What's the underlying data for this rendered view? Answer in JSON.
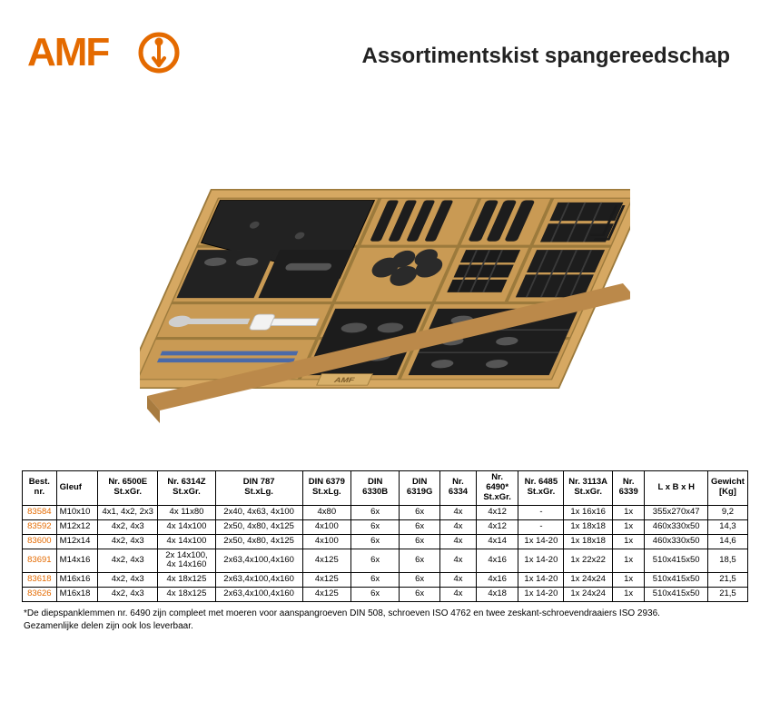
{
  "brand": {
    "name": "AMF",
    "logo_text_color": "#e46a00",
    "logo_circle_stroke": "#e46a00",
    "logo_circle_bg": "#ffffff"
  },
  "title": "Assortimentskist spangereedschap",
  "product_image": {
    "box_wood_outer": "#d6a862",
    "box_wood_inner": "#c99a54",
    "box_wood_highlight": "#e6c084",
    "parts_color": "#222222",
    "parts_shade": "#3a3a3a",
    "tube_color": "#f2f2f2",
    "wrench_color": "#cfcfcf",
    "thread_color": "#2a2a2a",
    "label_bg": "#d8b06a",
    "label_text": "AMF"
  },
  "table": {
    "head_row1": [
      "Best. nr.",
      "Gleuf",
      "Nr. 6500E St.xGr.",
      "Nr. 6314Z St.xGr.",
      "DIN 787 St.xLg.",
      "DIN 6379 St.xLg.",
      "DIN 6330B",
      "DIN 6319G",
      "Nr. 6334",
      "Nr. 6490* St.xGr.",
      "Nr. 6485 St.xGr.",
      "Nr. 3113A St.xGr.",
      "Nr. 6339",
      "L x B x H",
      "Gewicht [Kg]"
    ],
    "rows": [
      {
        "bestnr": "83584",
        "gleuf": "M10x10",
        "c6500": "4x1, 4x2, 2x3",
        "c6314": "4x 11x80",
        "c787": "2x40, 4x63, 4x100",
        "c6379": "4x80",
        "c6330": "6x",
        "c6319": "6x",
        "c6334": "4x",
        "c6490": "4x12",
        "c6485": "-",
        "c3113": "1x 16x16",
        "c6339": "1x",
        "lbh": "355x270x47",
        "kg": "9,2"
      },
      {
        "bestnr": "83592",
        "gleuf": "M12x12",
        "c6500": "4x2, 4x3",
        "c6314": "4x 14x100",
        "c787": "2x50, 4x80, 4x125",
        "c6379": "4x100",
        "c6330": "6x",
        "c6319": "6x",
        "c6334": "4x",
        "c6490": "4x12",
        "c6485": "-",
        "c3113": "1x 18x18",
        "c6339": "1x",
        "lbh": "460x330x50",
        "kg": "14,3"
      },
      {
        "bestnr": "83600",
        "gleuf": "M12x14",
        "c6500": "4x2, 4x3",
        "c6314": "4x 14x100",
        "c787": "2x50, 4x80, 4x125",
        "c6379": "4x100",
        "c6330": "6x",
        "c6319": "6x",
        "c6334": "4x",
        "c6490": "4x14",
        "c6485": "1x 14-20",
        "c3113": "1x 18x18",
        "c6339": "1x",
        "lbh": "460x330x50",
        "kg": "14,6"
      },
      {
        "bestnr": "83691",
        "gleuf": "M14x16",
        "c6500": "4x2, 4x3",
        "c6314": "2x 14x100, 4x 14x160",
        "c787": "2x63,4x100,4x160",
        "c6379": "4x125",
        "c6330": "6x",
        "c6319": "6x",
        "c6334": "4x",
        "c6490": "4x16",
        "c6485": "1x 14-20",
        "c3113": "1x 22x22",
        "c6339": "1x",
        "lbh": "510x415x50",
        "kg": "18,5"
      },
      {
        "bestnr": "83618",
        "gleuf": "M16x16",
        "c6500": "4x2, 4x3",
        "c6314": "4x 18x125",
        "c787": "2x63,4x100,4x160",
        "c6379": "4x125",
        "c6330": "6x",
        "c6319": "6x",
        "c6334": "4x",
        "c6490": "4x16",
        "c6485": "1x 14-20",
        "c3113": "1x 24x24",
        "c6339": "1x",
        "lbh": "510x415x50",
        "kg": "21,5"
      },
      {
        "bestnr": "83626",
        "gleuf": "M16x18",
        "c6500": "4x2, 4x3",
        "c6314": "4x 18x125",
        "c787": "2x63,4x100,4x160",
        "c6379": "4x125",
        "c6330": "6x",
        "c6319": "6x",
        "c6334": "4x",
        "c6490": "4x18",
        "c6485": "1x 14-20",
        "c3113": "1x 24x24",
        "c6339": "1x",
        "lbh": "510x415x50",
        "kg": "21,5"
      }
    ],
    "col_widths_pct": [
      4.8,
      5.8,
      8.8,
      8.4,
      12.2,
      7.0,
      7.0,
      5.8,
      5.2,
      6.0,
      6.5,
      7.0,
      4.6,
      8.9,
      6.0
    ]
  },
  "footnotes": {
    "line1": "*De diepspanklemmen nr. 6490 zijn compleet met moeren voor aanspangroeven DIN 508, schroeven ISO 4762 en twee zeskant-schroevendraaiers ISO 2936.",
    "line2": "Gezamenlijke delen zijn ook los leverbaar."
  },
  "colors": {
    "text": "#000000",
    "title": "#222222",
    "accent": "#e46a00",
    "border": "#000000",
    "background": "#ffffff"
  },
  "typography": {
    "title_fontsize_pt": 18,
    "table_fontsize_pt": 7,
    "footnote_fontsize_pt": 7.5,
    "font_family": "Arial"
  }
}
